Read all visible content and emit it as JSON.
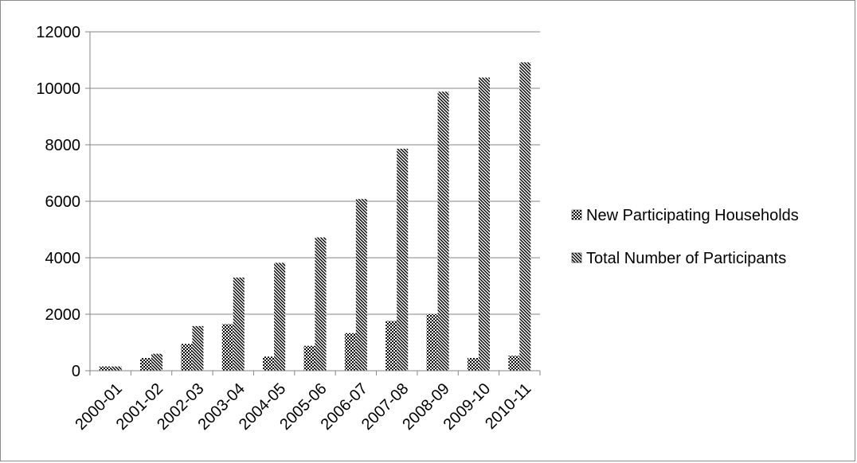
{
  "chart_data": {
    "type": "bar",
    "title": "",
    "xlabel": "",
    "ylabel": "",
    "categories": [
      "2000-01",
      "2001-02",
      "2002-03",
      "2003-04",
      "2004-05",
      "2005-06",
      "2006-07",
      "2007-08",
      "2008-09",
      "2009-10",
      "2010-11"
    ],
    "series": [
      {
        "name": "New Participating Households",
        "values": [
          150,
          450,
          950,
          1650,
          500,
          880,
          1330,
          1760,
          2000,
          450,
          530
        ],
        "pattern": "checker"
      },
      {
        "name": "Total Number of Participants",
        "values": [
          150,
          600,
          1580,
          3300,
          3820,
          4720,
          6080,
          7860,
          9880,
          10380,
          10920
        ],
        "pattern": "diagonal"
      }
    ],
    "ylim": [
      0,
      12000
    ],
    "y_ticks": [
      0,
      2000,
      4000,
      6000,
      8000,
      10000,
      12000
    ],
    "y_tick_labels": [
      "0",
      "2000",
      "4000",
      "6000",
      "8000",
      "10000",
      "12000"
    ],
    "grid": true,
    "legend_position": "right",
    "colors": {
      "bar_pattern": "#000000",
      "grid": "#868686",
      "axis": "#868686",
      "frame": "#8c8c8c"
    }
  }
}
